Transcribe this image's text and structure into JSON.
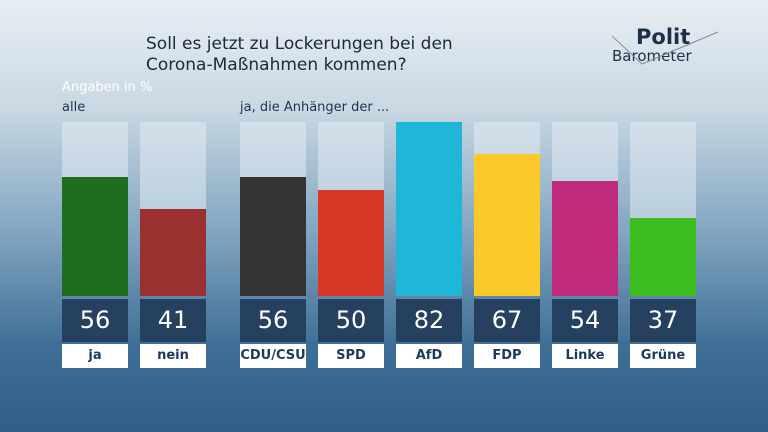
{
  "title_line1": "Soll es jetzt zu Lockerungen bei den",
  "title_line2": "Corona-Maßnahmen kommen?",
  "logo": {
    "top": "Polit",
    "bottom": "Barometer"
  },
  "unit_label": "Angaben in %",
  "group_all_label": "alle",
  "group_parties_label": "ja, die Anhänger der  ...",
  "chart_data": {
    "type": "bar",
    "title": "Soll es jetzt zu Lockerungen bei den Corona-Maßnahmen kommen?",
    "ylabel": "Angaben in %",
    "categories": [
      "ja",
      "nein",
      "CDU/CSU",
      "SPD",
      "AfD",
      "FDP",
      "Linke",
      "Grüne"
    ],
    "values": [
      56,
      41,
      56,
      50,
      82,
      67,
      54,
      37
    ],
    "colors": [
      "#1e6e1e",
      "#9b3030",
      "#333333",
      "#d63a26",
      "#1fb6d8",
      "#fcc92a",
      "#c02a7a",
      "#3cbd1f"
    ],
    "ylim": [
      0,
      82
    ]
  }
}
